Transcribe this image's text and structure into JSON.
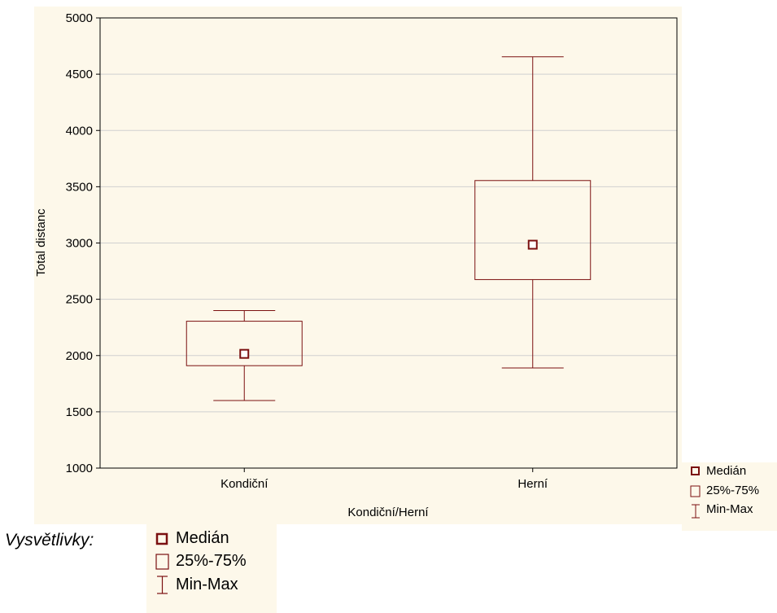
{
  "chart_data": {
    "type": "boxplot",
    "xlabel": "Kondiční/Herní",
    "ylabel": "Total distanc",
    "ylim": [
      1000,
      5000
    ],
    "yticks": [
      1000,
      1500,
      2000,
      2500,
      3000,
      3500,
      4000,
      4500,
      5000
    ],
    "grid": true,
    "categories": [
      "Kondiční",
      "Herní"
    ],
    "boxes": [
      {
        "category": "Kondiční",
        "min": 1600,
        "q1": 1910,
        "median": 2015,
        "q3": 2305,
        "max": 2400
      },
      {
        "category": "Herní",
        "min": 1890,
        "q1": 2675,
        "median": 2985,
        "q3": 3555,
        "max": 4655
      }
    ],
    "legend": [
      "Medián",
      "25%-75%",
      "Min-Max"
    ],
    "colors": {
      "box": "#7b1010",
      "grid": "#d0d0d0",
      "panel": "#fdf8ea"
    }
  },
  "caption": {
    "label": "Vysvětlivky:",
    "legend": [
      "Medián",
      "25%-75%",
      "Min-Max"
    ]
  }
}
